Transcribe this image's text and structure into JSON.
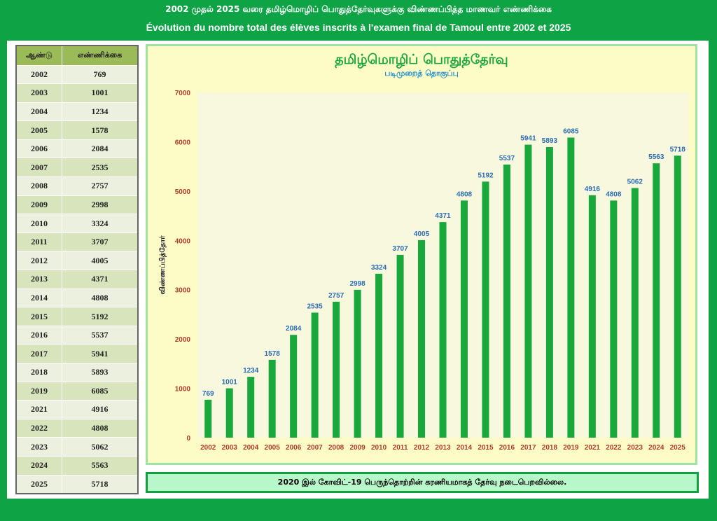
{
  "header": {
    "tamil_title": "2002 முதல் 2025 வரை தமிழ்மொழிப் பொதுத்தேர்வுகளுக்கு விண்ணப்பித்த மாணவர் எண்ணிக்கை",
    "french_title": "Évolution du nombre total des élèves inscrits à l'examen final de Tamoul entre 2002 et 2025"
  },
  "table": {
    "headers": [
      "ஆண்டு",
      "எண்ணிக்கை"
    ],
    "rows": [
      [
        "2002",
        "769"
      ],
      [
        "2003",
        "1001"
      ],
      [
        "2004",
        "1234"
      ],
      [
        "2005",
        "1578"
      ],
      [
        "2006",
        "2084"
      ],
      [
        "2007",
        "2535"
      ],
      [
        "2008",
        "2757"
      ],
      [
        "2009",
        "2998"
      ],
      [
        "2010",
        "3324"
      ],
      [
        "2011",
        "3707"
      ],
      [
        "2012",
        "4005"
      ],
      [
        "2013",
        "4371"
      ],
      [
        "2014",
        "4808"
      ],
      [
        "2015",
        "5192"
      ],
      [
        "2016",
        "5537"
      ],
      [
        "2017",
        "5941"
      ],
      [
        "2018",
        "5893"
      ],
      [
        "2019",
        "6085"
      ],
      [
        "2021",
        "4916"
      ],
      [
        "2022",
        "4808"
      ],
      [
        "2023",
        "5062"
      ],
      [
        "2024",
        "5563"
      ],
      [
        "2025",
        "5718"
      ]
    ]
  },
  "footer": {
    "note": "2020 இல் கோவிட்-19 பெருந்தொற்றின் கரணியமாகத் தேர்வு நடைபெறவில்லை."
  },
  "colors": {
    "bar": "#19a83b",
    "label": "#2a6db5",
    "tick": "#b03a2e"
  },
  "chart_data": {
    "type": "bar",
    "title": "தமிழ்மொழிப் பொதுத்தேர்வு",
    "subtitle": "படிமுறைத் தொகுப்பு",
    "xlabel": "",
    "ylabel": "விண்ணப்பித்தோர்",
    "ylim": [
      0,
      7000
    ],
    "yticks": [
      0,
      1000,
      2000,
      3000,
      4000,
      5000,
      6000,
      7000
    ],
    "grid": false,
    "categories": [
      "2002",
      "2003",
      "2004",
      "2005",
      "2006",
      "2007",
      "2008",
      "2009",
      "2010",
      "2011",
      "2012",
      "2013",
      "2014",
      "2015",
      "2016",
      "2017",
      "2018",
      "2019",
      "2021",
      "2022",
      "2023",
      "2024",
      "2025"
    ],
    "values": [
      769,
      1001,
      1234,
      1578,
      2084,
      2535,
      2757,
      2998,
      3324,
      3707,
      4005,
      4371,
      4808,
      5192,
      5537,
      5941,
      5893,
      6085,
      4916,
      4808,
      5062,
      5563,
      5718
    ]
  }
}
